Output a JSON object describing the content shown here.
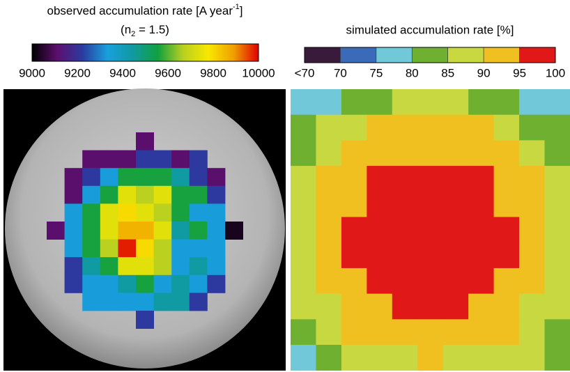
{
  "chart_data": [
    {
      "type": "heatmap",
      "title": {
        "main": "observed accumulation rate [A year",
        "sup": "-1",
        "end": "]"
      },
      "subtitle": {
        "main": "(n",
        "sub": "2",
        "end": " = 1.5)"
      },
      "colormap": [
        "#000000",
        "#5c0f6e",
        "#2c3aa0",
        "#18a0dc",
        "#109aa0",
        "#10a040",
        "#b8d020",
        "#f8e800",
        "#f0a000",
        "#e00000"
      ],
      "clim": [
        9000,
        10000
      ],
      "cticks": [
        9000,
        9200,
        9400,
        9600,
        9800,
        10000
      ],
      "values": [
        [
          null,
          null,
          null,
          null,
          null,
          9110,
          null,
          null,
          null,
          null,
          null
        ],
        [
          null,
          null,
          9110,
          9110,
          9110,
          9220,
          9220,
          9110,
          9220,
          null,
          null
        ],
        [
          null,
          9110,
          9220,
          9330,
          9560,
          9560,
          9560,
          9440,
          9220,
          9110,
          null
        ],
        [
          null,
          9110,
          9330,
          9560,
          9740,
          9670,
          9740,
          9560,
          9560,
          9220,
          null
        ],
        [
          null,
          9330,
          9560,
          9740,
          9800,
          9740,
          9670,
          9560,
          9330,
          9330,
          null
        ],
        [
          9110,
          9330,
          9560,
          9740,
          9860,
          9860,
          9740,
          9440,
          9560,
          9330,
          9030
        ],
        [
          null,
          9330,
          9560,
          9670,
          9980,
          9800,
          9670,
          9330,
          9330,
          9330,
          null
        ],
        [
          null,
          9220,
          9440,
          9560,
          9740,
          9740,
          9670,
          9330,
          9440,
          9330,
          null
        ],
        [
          null,
          9220,
          9330,
          9330,
          9440,
          9560,
          9330,
          9440,
          9330,
          9220,
          null
        ],
        [
          null,
          null,
          9330,
          9330,
          9330,
          9330,
          9440,
          9440,
          9220,
          null,
          null
        ],
        [
          null,
          null,
          null,
          null,
          null,
          9220,
          null,
          null,
          null,
          null,
          null
        ]
      ]
    },
    {
      "type": "heatmap-binned",
      "title": {
        "main": "simulated accumulation rate [%]"
      },
      "colormap": [
        "#3a1a3a",
        "#3a6ab8",
        "#70c8d8",
        "#70b030",
        "#c8d840",
        "#f0c020",
        "#e01818"
      ],
      "clim": [
        65,
        100
      ],
      "cticks": [
        {
          "value": 65,
          "label": "<70"
        },
        70,
        75,
        80,
        85,
        90,
        95,
        100
      ],
      "values": [
        [
          77,
          77,
          82,
          82,
          87,
          87,
          87,
          82,
          82,
          77,
          77
        ],
        [
          82,
          87,
          87,
          92,
          92,
          92,
          92,
          92,
          87,
          82,
          82
        ],
        [
          82,
          87,
          92,
          92,
          92,
          92,
          92,
          92,
          92,
          87,
          82
        ],
        [
          87,
          92,
          92,
          97,
          97,
          97,
          97,
          97,
          92,
          92,
          87
        ],
        [
          87,
          92,
          92,
          97,
          97,
          97,
          97,
          97,
          92,
          92,
          87
        ],
        [
          87,
          92,
          97,
          97,
          97,
          97,
          97,
          97,
          97,
          92,
          87
        ],
        [
          87,
          92,
          97,
          97,
          97,
          97,
          97,
          97,
          97,
          92,
          87
        ],
        [
          87,
          92,
          92,
          97,
          97,
          97,
          97,
          97,
          92,
          92,
          87
        ],
        [
          87,
          87,
          92,
          92,
          97,
          97,
          97,
          92,
          92,
          87,
          87
        ],
        [
          82,
          87,
          92,
          92,
          92,
          92,
          92,
          92,
          92,
          87,
          82
        ],
        [
          77,
          82,
          87,
          87,
          87,
          92,
          87,
          87,
          87,
          87,
          82
        ]
      ]
    }
  ]
}
